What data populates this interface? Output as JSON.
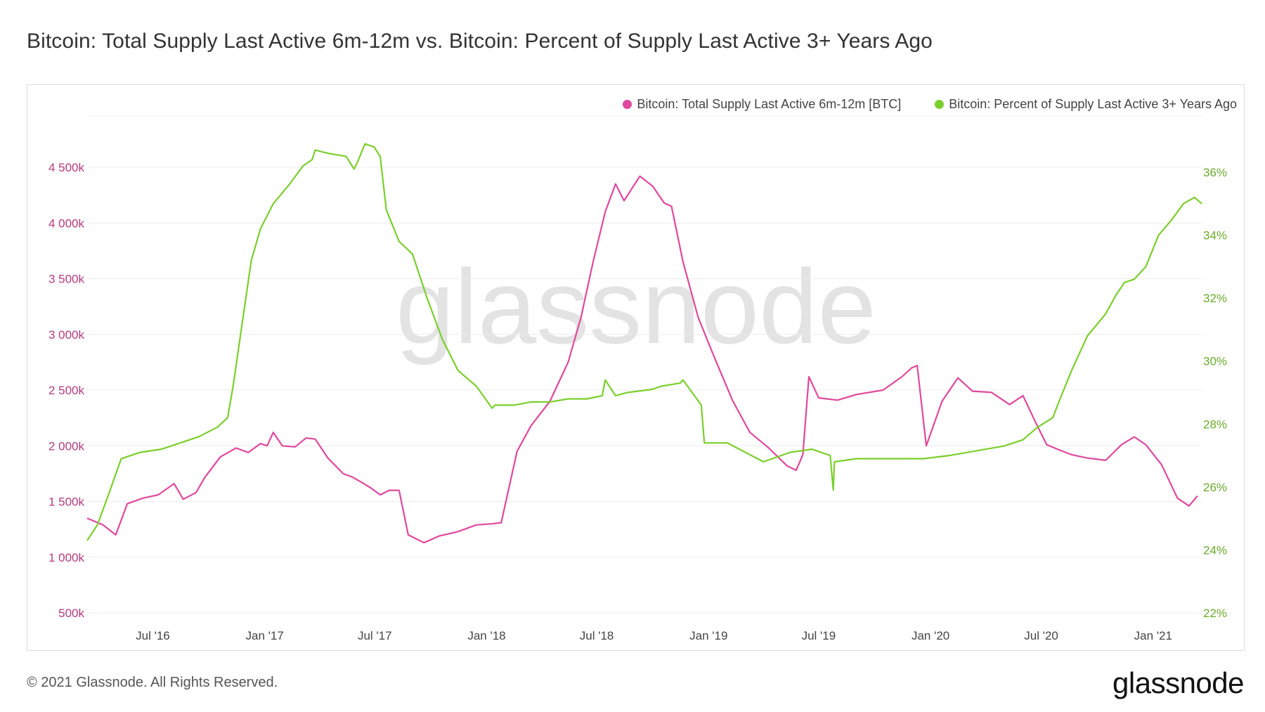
{
  "title": "Bitcoin: Total Supply Last Active 6m-12m vs. Bitcoin: Percent of Supply Last Active 3+ Years Ago",
  "footer": {
    "copyright": "© 2021 Glassnode. All Rights Reserved.",
    "logo": "glassnode",
    "watermark": "glassnode"
  },
  "colors": {
    "left_series": "#e0489d",
    "right_series": "#7bcf2c",
    "left_axis": "#b43a7e",
    "right_axis": "#6aab2a",
    "grid": "#ececec"
  },
  "chart_data": {
    "type": "line",
    "title": "Bitcoin: Total Supply Last Active 6m-12m vs. Bitcoin: Percent of Supply Last Active 3+ Years Ago",
    "x_ticks": [
      "Jul '16",
      "Jan '17",
      "Jul '17",
      "Jan '18",
      "Jul '18",
      "Jan '19",
      "Jul '19",
      "Jan '20",
      "Jul '20",
      "Jan '21"
    ],
    "x_tick_dates": [
      "2016-07-01",
      "2017-01-01",
      "2017-07-01",
      "2018-01-01",
      "2018-07-01",
      "2019-01-01",
      "2019-07-01",
      "2020-01-01",
      "2020-07-01",
      "2021-01-01"
    ],
    "x_range": [
      "2016-03-15",
      "2021-03-22"
    ],
    "left_axis": {
      "ticks": [
        "500k",
        "1 000k",
        "1 500k",
        "2 000k",
        "2 500k",
        "3 000k",
        "3 500k",
        "4 000k",
        "4 500k"
      ],
      "tick_values": [
        500000,
        1000000,
        1500000,
        2000000,
        2500000,
        3000000,
        3500000,
        4000000,
        4500000
      ],
      "range": [
        500000,
        4500000
      ]
    },
    "right_axis": {
      "ticks": [
        "22%",
        "24%",
        "26%",
        "28%",
        "30%",
        "32%",
        "34%",
        "36%"
      ],
      "tick_values": [
        22,
        24,
        26,
        28,
        30,
        32,
        34,
        36
      ],
      "range": [
        22,
        36
      ]
    },
    "grid": true,
    "legend_position": "top-right",
    "series": [
      {
        "name": "Bitcoin: Total Supply Last Active 6m-12m [BTC]",
        "axis": "left",
        "color": "#e0489d",
        "x": [
          "2016-03-15",
          "2016-04-10",
          "2016-05-01",
          "2016-05-20",
          "2016-06-15",
          "2016-07-10",
          "2016-08-05",
          "2016-08-20",
          "2016-09-10",
          "2016-09-25",
          "2016-10-20",
          "2016-11-15",
          "2016-12-05",
          "2016-12-25",
          "2017-01-05",
          "2017-01-15",
          "2017-01-30",
          "2017-02-20",
          "2017-03-10",
          "2017-03-25",
          "2017-04-15",
          "2017-05-10",
          "2017-05-25",
          "2017-06-10",
          "2017-06-25",
          "2017-07-10",
          "2017-07-25",
          "2017-08-10",
          "2017-08-25",
          "2017-09-20",
          "2017-10-15",
          "2017-11-15",
          "2017-12-15",
          "2018-01-10",
          "2018-01-25",
          "2018-02-20",
          "2018-03-15",
          "2018-04-15",
          "2018-05-15",
          "2018-06-05",
          "2018-06-25",
          "2018-07-15",
          "2018-08-01",
          "2018-08-15",
          "2018-09-10",
          "2018-10-01",
          "2018-10-20",
          "2018-11-01",
          "2018-11-20",
          "2018-12-15",
          "2019-01-10",
          "2019-02-10",
          "2019-03-10",
          "2019-04-10",
          "2019-05-10",
          "2019-05-25",
          "2019-06-05",
          "2019-06-15",
          "2019-07-01",
          "2019-08-01",
          "2019-09-01",
          "2019-10-15",
          "2019-11-15",
          "2019-12-01",
          "2019-12-10",
          "2019-12-25",
          "2020-01-20",
          "2020-02-15",
          "2020-03-10",
          "2020-04-10",
          "2020-05-10",
          "2020-06-01",
          "2020-06-20",
          "2020-07-10",
          "2020-08-01",
          "2020-08-20",
          "2020-09-15",
          "2020-10-15",
          "2020-11-10",
          "2020-12-01",
          "2020-12-20",
          "2021-01-15",
          "2021-02-10",
          "2021-03-01",
          "2021-03-15"
        ],
        "values": [
          1350000,
          1290000,
          1200000,
          1480000,
          1530000,
          1560000,
          1660000,
          1520000,
          1580000,
          1720000,
          1900000,
          1980000,
          1940000,
          2020000,
          2000000,
          2120000,
          2000000,
          1990000,
          2070000,
          2060000,
          1890000,
          1750000,
          1720000,
          1670000,
          1620000,
          1560000,
          1600000,
          1600000,
          1200000,
          1130000,
          1190000,
          1230000,
          1290000,
          1300000,
          1310000,
          1950000,
          2180000,
          2400000,
          2750000,
          3150000,
          3650000,
          4100000,
          4350000,
          4200000,
          4420000,
          4330000,
          4180000,
          4150000,
          3650000,
          3150000,
          2800000,
          2400000,
          2120000,
          1980000,
          1820000,
          1780000,
          1920000,
          2620000,
          2430000,
          2410000,
          2460000,
          2500000,
          2620000,
          2700000,
          2720000,
          2000000,
          2400000,
          2610000,
          2490000,
          2480000,
          2370000,
          2450000,
          2230000,
          2010000,
          1960000,
          1920000,
          1890000,
          1870000,
          2010000,
          2080000,
          2010000,
          1830000,
          1530000,
          1460000,
          1550000
        ]
      },
      {
        "name": "Bitcoin: Percent of Supply Last Active 3+ Years Ago",
        "axis": "right",
        "color": "#7bcf2c",
        "x": [
          "2016-03-15",
          "2016-04-01",
          "2016-04-20",
          "2016-05-10",
          "2016-06-10",
          "2016-07-15",
          "2016-08-15",
          "2016-09-15",
          "2016-10-15",
          "2016-11-01",
          "2016-11-10",
          "2016-11-25",
          "2016-12-10",
          "2016-12-25",
          "2017-01-15",
          "2017-02-10",
          "2017-03-05",
          "2017-03-20",
          "2017-03-25",
          "2017-04-15",
          "2017-05-15",
          "2017-05-28",
          "2017-06-02",
          "2017-06-15",
          "2017-06-30",
          "2017-07-10",
          "2017-07-20",
          "2017-08-10",
          "2017-09-01",
          "2017-09-25",
          "2017-10-20",
          "2017-11-15",
          "2017-12-15",
          "2018-01-10",
          "2018-01-15",
          "2018-02-15",
          "2018-03-15",
          "2018-04-15",
          "2018-05-15",
          "2018-06-15",
          "2018-07-10",
          "2018-07-15",
          "2018-08-01",
          "2018-08-20",
          "2018-09-30",
          "2018-10-15",
          "2018-11-15",
          "2018-11-20",
          "2018-12-20",
          "2018-12-25",
          "2019-02-01",
          "2019-04-01",
          "2019-05-15",
          "2019-06-20",
          "2019-07-20",
          "2019-07-25",
          "2019-07-27",
          "2019-09-01",
          "2019-11-01",
          "2019-12-20",
          "2020-02-01",
          "2020-04-01",
          "2020-05-01",
          "2020-06-01",
          "2020-06-25",
          "2020-07-20",
          "2020-08-01",
          "2020-08-20",
          "2020-09-15",
          "2020-10-15",
          "2020-11-01",
          "2020-11-15",
          "2020-12-01",
          "2020-12-20",
          "2021-01-10",
          "2021-02-01",
          "2021-02-20",
          "2021-03-10",
          "2021-03-22"
        ],
        "values": [
          24.3,
          24.8,
          25.8,
          26.9,
          27.1,
          27.2,
          27.4,
          27.6,
          27.9,
          28.2,
          29.2,
          31.2,
          33.2,
          34.2,
          35.0,
          35.6,
          36.2,
          36.4,
          36.7,
          36.6,
          36.5,
          36.1,
          36.3,
          36.9,
          36.8,
          36.5,
          34.8,
          33.8,
          33.4,
          32.0,
          30.7,
          29.7,
          29.2,
          28.5,
          28.6,
          28.6,
          28.7,
          28.7,
          28.8,
          28.8,
          28.9,
          29.4,
          28.9,
          29.0,
          29.1,
          29.2,
          29.3,
          29.4,
          28.6,
          27.4,
          27.4,
          26.8,
          27.1,
          27.2,
          27.0,
          25.9,
          26.8,
          26.9,
          26.9,
          26.9,
          27.0,
          27.2,
          27.3,
          27.5,
          27.9,
          28.2,
          28.8,
          29.7,
          30.8,
          31.5,
          32.1,
          32.5,
          32.6,
          33.0,
          34.0,
          34.5,
          35.0,
          35.2,
          35.0
        ]
      }
    ]
  }
}
